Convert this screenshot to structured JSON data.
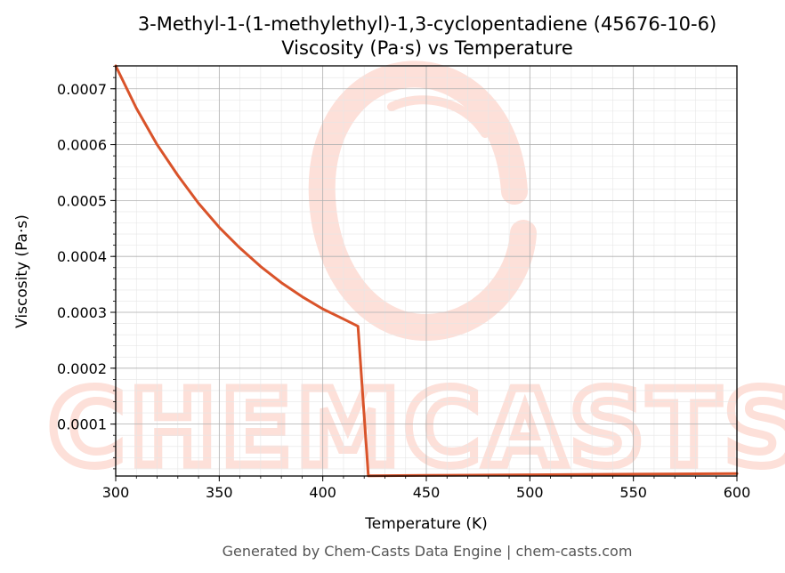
{
  "colors": {
    "line": "#d9532a",
    "watermark": "#fde0d9",
    "grid_major": "#b0b0b0",
    "grid_minor": "#e6e6e6",
    "footer": "#555555"
  },
  "watermark": {
    "text": "CHEMCASTS"
  },
  "footer": "Generated by Chem-Casts Data Engine | chem-casts.com",
  "chart_data": {
    "type": "line",
    "title": "3-Methyl-1-(1-methylethyl)-1,3-cyclopentadiene (45676-10-6)",
    "subtitle": "Viscosity (Pa·s) vs Temperature",
    "xlabel": "Temperature (K)",
    "ylabel": "Viscosity (Pa·s)",
    "xlim": [
      300,
      600
    ],
    "ylim": [
      7.1e-06,
      0.000741
    ],
    "x_ticks": [
      300,
      350,
      400,
      450,
      500,
      550,
      600
    ],
    "x_tick_labels": [
      "300",
      "350",
      "400",
      "450",
      "500",
      "550",
      "600"
    ],
    "y_ticks": [
      0.0001,
      0.0002,
      0.0003,
      0.0004,
      0.0005,
      0.0006,
      0.0007
    ],
    "y_tick_labels": [
      "0.0001",
      "0.0002",
      "0.0003",
      "0.0004",
      "0.0005",
      "0.0006",
      "0.0007"
    ],
    "grid": true,
    "series": [
      {
        "x": [
          300,
          310,
          320,
          330,
          340,
          350,
          360,
          370,
          380,
          390,
          400,
          410,
          417,
          422,
          430,
          450,
          500,
          550,
          600
        ],
        "y": [
          0.000741,
          0.000665,
          0.0006,
          0.000545,
          0.000495,
          0.000452,
          0.000415,
          0.000382,
          0.000353,
          0.000328,
          0.000306,
          0.000288,
          0.000275,
          7.5e-06,
          7.7e-06,
          8.2e-06,
          9.3e-06,
          1.04e-05,
          1.15e-05
        ]
      }
    ]
  }
}
